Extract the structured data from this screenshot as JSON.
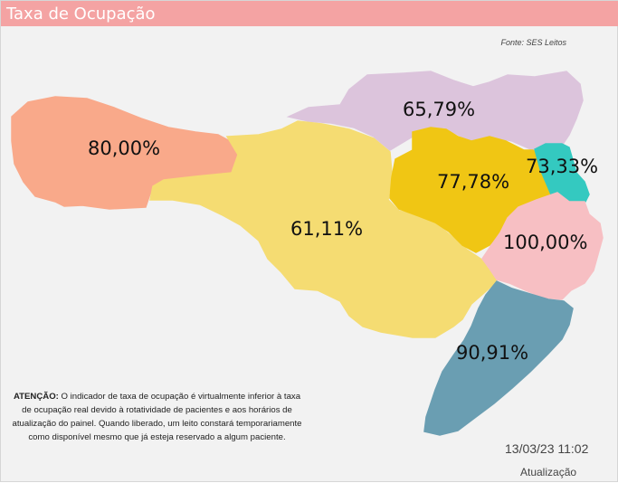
{
  "header": {
    "title": "Taxa de Ocupação"
  },
  "source": "Fonte: SES Leitos",
  "regions": [
    {
      "id": "west",
      "label": "80,00%",
      "value": 80.0,
      "color": "#f9a98a"
    },
    {
      "id": "north",
      "label": "65,79%",
      "value": 65.79,
      "color": "#dcc4dc"
    },
    {
      "id": "center",
      "label": "61,11%",
      "value": 61.11,
      "color": "#f5dc72"
    },
    {
      "id": "valley",
      "label": "77,78%",
      "value": 77.78,
      "color": "#f0c614"
    },
    {
      "id": "northeast",
      "label": "73,33%",
      "value": 73.33,
      "color": "#34c9c0"
    },
    {
      "id": "grande-flor",
      "label": "100,00%",
      "value": 100.0,
      "color": "#f7bfc3"
    },
    {
      "id": "south",
      "label": "90,91%",
      "value": 90.91,
      "color": "#6a9eb2"
    }
  ],
  "notice": {
    "bold": "ATENÇÃO:",
    "text": " O indicador de taxa de ocupação é virtualmente inferior à taxa de ocupação real devido à rotatividade de pacientes e aos horários de atualização do painel.  Quando liberado, um leito constará temporariamente como disponível mesmo que já esteja reservado a algum paciente."
  },
  "footer": {
    "date": "13/03/23 11:02",
    "label": "Atualização"
  }
}
